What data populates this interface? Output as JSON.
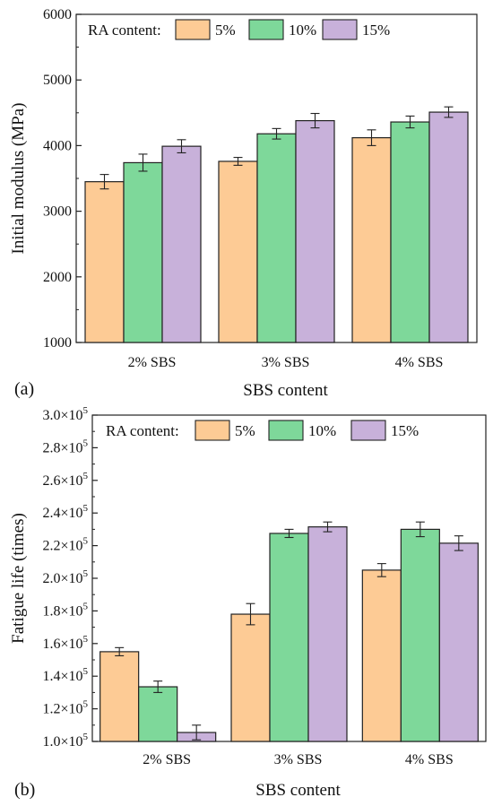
{
  "chart_data": [
    {
      "type": "bar",
      "panel_label": "(a)",
      "xlabel": "SBS content",
      "ylabel": "Initial modulus (MPa)",
      "categories": [
        "2% SBS",
        "3% SBS",
        "4% SBS"
      ],
      "ylim": [
        1000,
        6000
      ],
      "yticks": [
        1000,
        2000,
        3000,
        4000,
        5000,
        6000
      ],
      "ytick_labels": [
        "1000",
        "2000",
        "3000",
        "4000",
        "5000",
        "6000"
      ],
      "legend_title": "RA content:",
      "legend_position": "top-left",
      "series": [
        {
          "name": "5%",
          "color": "#FDCB95",
          "values": [
            3450,
            3760,
            4120
          ],
          "errors": [
            110,
            60,
            120
          ]
        },
        {
          "name": "10%",
          "color": "#7ED89A",
          "values": [
            3740,
            4180,
            4360
          ],
          "errors": [
            130,
            80,
            90
          ]
        },
        {
          "name": "15%",
          "color": "#C8B1DA",
          "values": [
            3990,
            4380,
            4510
          ],
          "errors": [
            100,
            110,
            80
          ]
        }
      ]
    },
    {
      "type": "bar",
      "panel_label": "(b)",
      "xlabel": "SBS content",
      "ylabel": "Fatigue life (times)",
      "categories": [
        "2% SBS",
        "3% SBS",
        "4% SBS"
      ],
      "ylim": [
        100000,
        300000
      ],
      "yticks": [
        100000,
        120000,
        140000,
        160000,
        180000,
        200000,
        220000,
        240000,
        260000,
        280000,
        300000
      ],
      "ytick_mantissas": [
        "1.0",
        "1.2",
        "1.4",
        "1.6",
        "1.8",
        "2.0",
        "2.2",
        "2.4",
        "2.6",
        "2.8",
        "3.0"
      ],
      "ytick_base": "×10",
      "ytick_exponent": "5",
      "legend_title": "RA content:",
      "legend_position": "top-left",
      "series": [
        {
          "name": "5%",
          "color": "#FDCB95",
          "values": [
            155000,
            178000,
            205000
          ],
          "errors": [
            2500,
            6500,
            4000
          ]
        },
        {
          "name": "10%",
          "color": "#7ED89A",
          "values": [
            133500,
            227500,
            230000
          ],
          "errors": [
            3500,
            2500,
            4500
          ]
        },
        {
          "name": "15%",
          "color": "#C8B1DA",
          "values": [
            105500,
            231500,
            221500
          ],
          "errors": [
            4500,
            3000,
            4500
          ]
        }
      ]
    }
  ]
}
